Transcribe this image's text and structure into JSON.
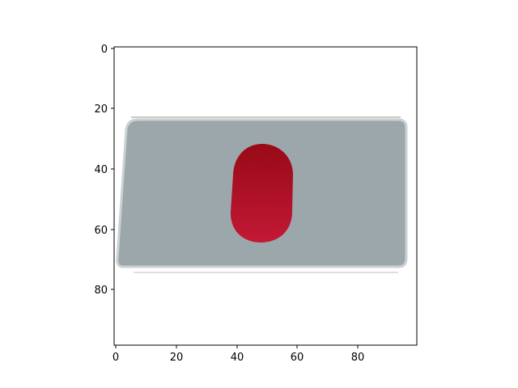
{
  "figure": {
    "x_ticks": [
      "0",
      "20",
      "40",
      "60",
      "80"
    ],
    "y_ticks": [
      "0",
      "20",
      "40",
      "60",
      "80"
    ]
  },
  "image": {
    "description_colors": {
      "background": "#ffffff",
      "card_fill": "#9aa6aa",
      "card_edge": "#c9d0d2",
      "pill_fill": "#c01433",
      "pill_top": "#9c0d1a"
    },
    "icon": "red-pill-on-gray-card"
  }
}
